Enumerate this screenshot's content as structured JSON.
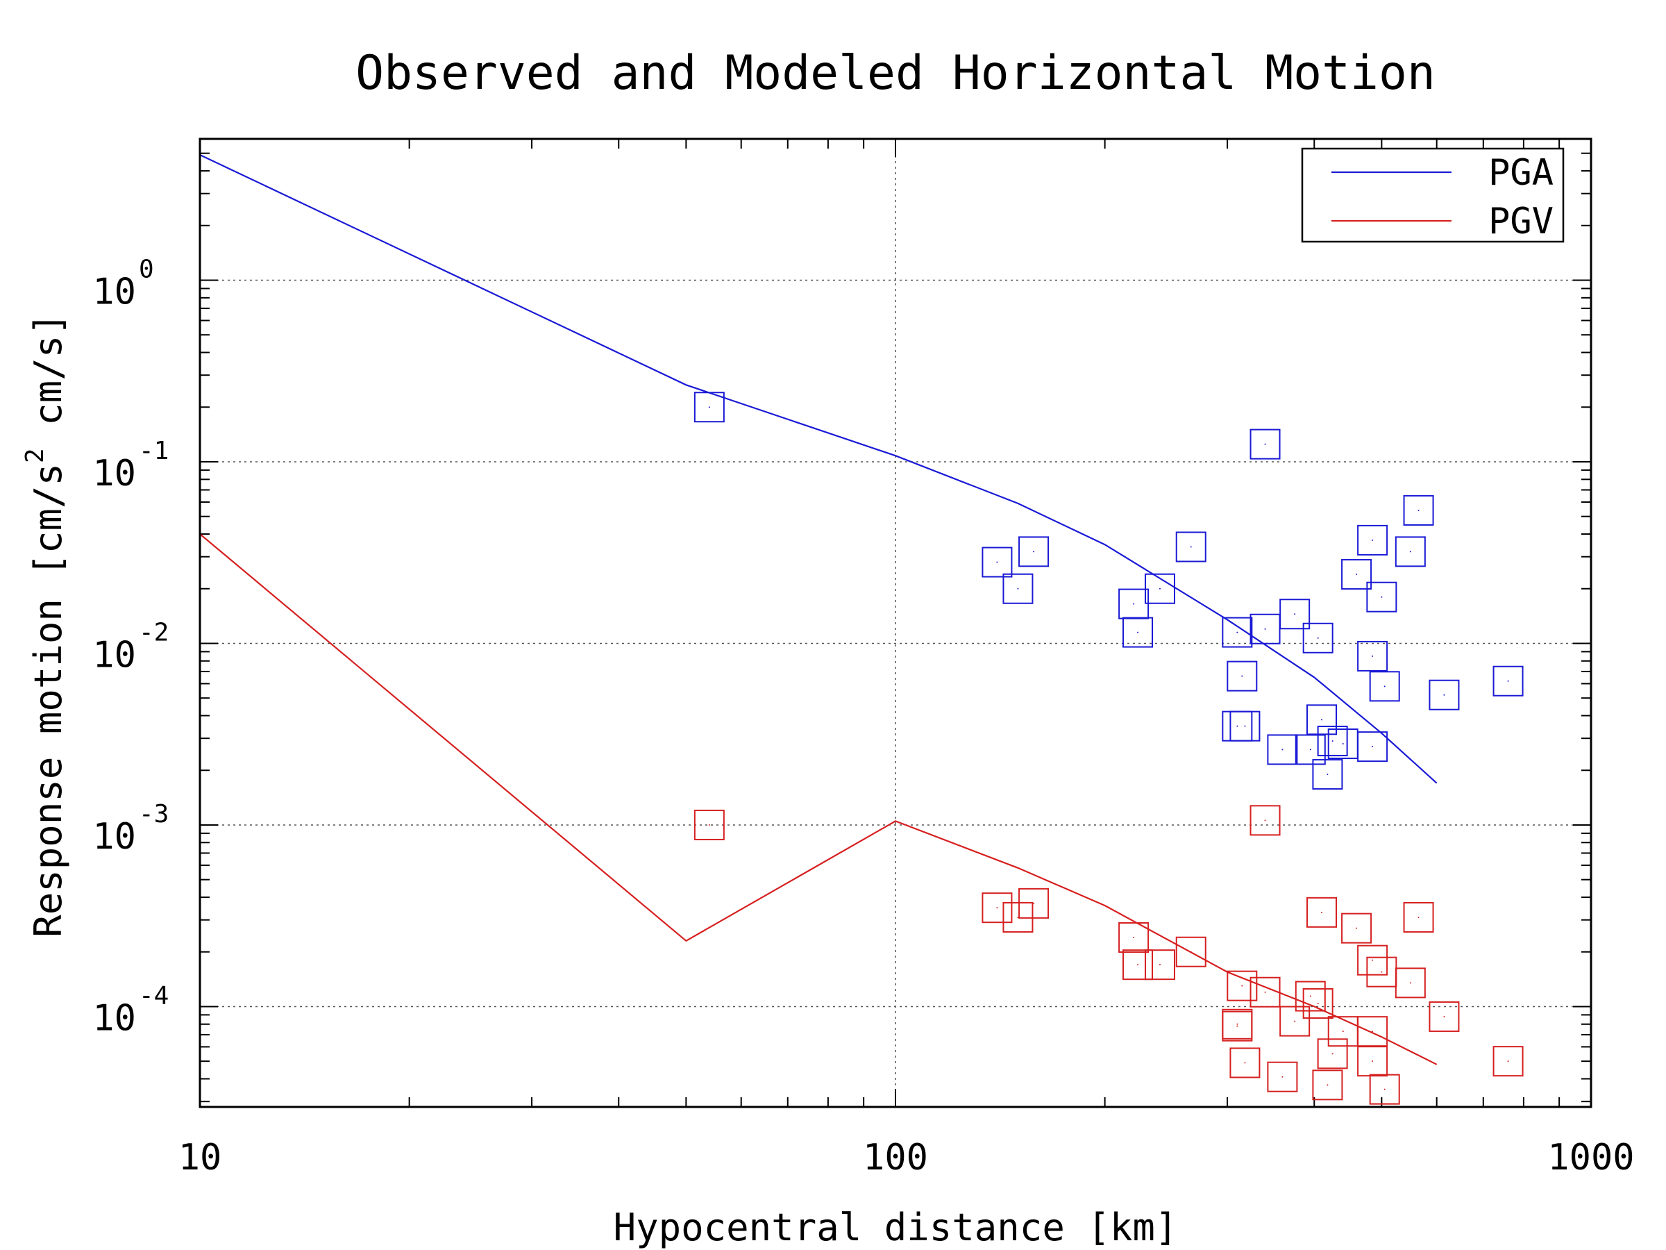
{
  "chart_data": {
    "type": "scatter",
    "title": "Observed and Modeled Horizontal Motion",
    "xlabel": "Hypocentral distance [km]",
    "ylabel": {
      "prefix": "Response motion [cm/s",
      "superscript": "2",
      "suffix": "  cm/s]"
    },
    "x_scale": "log",
    "y_scale": "log",
    "xlim": [
      10,
      1000
    ],
    "ylim": [
      2.8e-05,
      6
    ],
    "x_ticks": [
      {
        "value": 10,
        "label": "10"
      },
      {
        "value": 100,
        "label": "100"
      },
      {
        "value": 1000,
        "label": "1000"
      }
    ],
    "y_ticks": [
      {
        "value": 1,
        "base": "10",
        "exp": "0"
      },
      {
        "value": 0.1,
        "base": "10",
        "exp": "-1"
      },
      {
        "value": 0.01,
        "base": "10",
        "exp": "-2"
      },
      {
        "value": 0.001,
        "base": "10",
        "exp": "-3"
      },
      {
        "value": 0.0001,
        "base": "10",
        "exp": "-4"
      }
    ],
    "grid": true,
    "legend": {
      "position": "top-right",
      "entries": [
        {
          "label": "PGA",
          "color": "#1a1ad6"
        },
        {
          "label": "PGV",
          "color": "#d62020"
        }
      ]
    },
    "series": [
      {
        "name": "PGA",
        "kind": "line",
        "color": "#1a1ad6",
        "points": [
          [
            10,
            4.9
          ],
          [
            50,
            0.265
          ],
          [
            100,
            0.108
          ],
          [
            150,
            0.059
          ],
          [
            200,
            0.035
          ],
          [
            300,
            0.0135
          ],
          [
            400,
            0.0065
          ],
          [
            500,
            0.0032
          ],
          [
            600,
            0.0017
          ]
        ]
      },
      {
        "name": "PGV",
        "kind": "line",
        "color": "#d62020",
        "points": [
          [
            10,
            0.04
          ],
          [
            50,
            0.00023
          ],
          [
            100,
            0.00105
          ],
          [
            150,
            0.00058
          ],
          [
            200,
            0.00036
          ],
          [
            300,
            0.000155
          ],
          [
            400,
            0.0001
          ],
          [
            500,
            6.8e-05
          ],
          [
            600,
            4.8e-05
          ]
        ]
      },
      {
        "name": "PGA",
        "kind": "markers",
        "color": "#1a1ad6",
        "points": [
          [
            54,
            0.2
          ],
          [
            140,
            0.028
          ],
          [
            150,
            0.02
          ],
          [
            158,
            0.032
          ],
          [
            220,
            0.0165
          ],
          [
            223,
            0.0115
          ],
          [
            240,
            0.02
          ],
          [
            266,
            0.034
          ],
          [
            310,
            0.0115
          ],
          [
            315,
            0.0066
          ],
          [
            310,
            0.0035
          ],
          [
            318,
            0.0035
          ],
          [
            340,
            0.012
          ],
          [
            340,
            0.125
          ],
          [
            360,
            0.0026
          ],
          [
            375,
            0.0145
          ],
          [
            395,
            0.0026
          ],
          [
            405,
            0.0107
          ],
          [
            410,
            0.0038
          ],
          [
            418,
            0.0019
          ],
          [
            425,
            0.0029
          ],
          [
            440,
            0.0028
          ],
          [
            460,
            0.024
          ],
          [
            485,
            0.037
          ],
          [
            485,
            0.0085
          ],
          [
            485,
            0.0027
          ],
          [
            500,
            0.018
          ],
          [
            505,
            0.0058
          ],
          [
            550,
            0.032
          ],
          [
            565,
            0.054
          ],
          [
            615,
            0.0052
          ],
          [
            760,
            0.0062
          ]
        ]
      },
      {
        "name": "PGV",
        "kind": "markers",
        "color": "#d62020",
        "points": [
          [
            54,
            0.001
          ],
          [
            140,
            0.00035
          ],
          [
            150,
            0.00031
          ],
          [
            158,
            0.00037
          ],
          [
            220,
            0.00024
          ],
          [
            223,
            0.00017
          ],
          [
            240,
            0.00017
          ],
          [
            266,
            0.0002
          ],
          [
            310,
            8e-05
          ],
          [
            315,
            0.00013
          ],
          [
            310,
            7.8e-05
          ],
          [
            318,
            4.9e-05
          ],
          [
            340,
            0.00012
          ],
          [
            340,
            0.00106
          ],
          [
            360,
            4.1e-05
          ],
          [
            375,
            8.3e-05
          ],
          [
            395,
            0.000114
          ],
          [
            405,
            0.000104
          ],
          [
            410,
            0.00033
          ],
          [
            418,
            3.7e-05
          ],
          [
            425,
            5.5e-05
          ],
          [
            440,
            7.3e-05
          ],
          [
            460,
            0.00027
          ],
          [
            485,
            0.00018
          ],
          [
            485,
            5e-05
          ],
          [
            485,
            7.3e-05
          ],
          [
            500,
            0.000155
          ],
          [
            505,
            3.5e-05
          ],
          [
            550,
            0.000135
          ],
          [
            565,
            0.00031
          ],
          [
            615,
            8.8e-05
          ],
          [
            760,
            5e-05
          ]
        ]
      }
    ]
  }
}
